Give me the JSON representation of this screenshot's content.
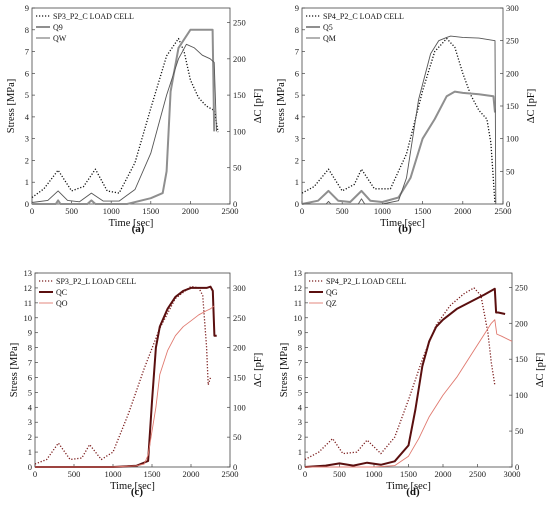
{
  "chart_data": [
    {
      "type": "line",
      "caption": "(a)",
      "xlabel": "Time [sec]",
      "ylabel": "Stress [MPa]",
      "y2label": "ΔC [pF]",
      "xlim": [
        0,
        2500
      ],
      "ylim": [
        0,
        9
      ],
      "y2lim": [
        0,
        270
      ],
      "xticks": [
        0,
        500,
        1000,
        1500,
        2000,
        2500
      ],
      "yticks": [
        0,
        1,
        2,
        3,
        4,
        5,
        6,
        7,
        8,
        9
      ],
      "y2ticks": [
        0,
        50,
        100,
        150,
        200,
        250
      ],
      "legend_position": "top-left",
      "series": [
        {
          "name": "SP3_P2_C LOAD CELL",
          "axis": "left",
          "style": "dotted",
          "color": "#111111",
          "x": [
            0,
            150,
            330,
            500,
            650,
            800,
            950,
            1100,
            1300,
            1500,
            1700,
            1850,
            1920,
            2000,
            2100,
            2200,
            2300,
            2350
          ],
          "y": [
            0.3,
            0.7,
            1.55,
            0.6,
            0.8,
            1.6,
            0.6,
            0.5,
            1.9,
            4.4,
            6.8,
            7.6,
            7.0,
            5.7,
            4.9,
            4.5,
            4.3,
            3.3
          ]
        },
        {
          "name": "Q9",
          "axis": "right",
          "style": "solid-thick",
          "color": "#8f8f8f",
          "x": [
            0,
            300,
            330,
            360,
            700,
            750,
            800,
            1000,
            1200,
            1500,
            1650,
            1700,
            1750,
            1850,
            2000,
            2100,
            2280,
            2300
          ],
          "y": [
            0,
            0,
            5,
            0,
            0,
            5,
            0,
            0,
            0,
            8,
            15,
            45,
            155,
            215,
            240,
            240,
            240,
            100
          ]
        },
        {
          "name": "QW",
          "axis": "right",
          "style": "solid-thin",
          "color": "#555555",
          "x": [
            0,
            200,
            330,
            450,
            600,
            750,
            900,
            1100,
            1300,
            1500,
            1700,
            1850,
            1950,
            2050,
            2150,
            2250,
            2300,
            2330
          ],
          "y": [
            2,
            5,
            18,
            5,
            3,
            15,
            4,
            4,
            20,
            70,
            150,
            200,
            220,
            215,
            205,
            200,
            195,
            100
          ]
        }
      ]
    },
    {
      "type": "line",
      "caption": "(b)",
      "xlabel": "Time [sec]",
      "ylabel": "Stress [MPa]",
      "y2label": "ΔC [pF]",
      "xlim": [
        0,
        2500
      ],
      "ylim": [
        0,
        9
      ],
      "y2lim": [
        0,
        300
      ],
      "xticks": [
        0,
        500,
        1000,
        1500,
        2000,
        2500
      ],
      "yticks": [
        0,
        1,
        2,
        3,
        4,
        5,
        6,
        7,
        8,
        9
      ],
      "y2ticks": [
        0,
        50,
        100,
        150,
        200,
        250,
        300
      ],
      "legend_position": "top-left",
      "series": [
        {
          "name": "SP4_P2_C LOAD CELL",
          "axis": "left",
          "style": "dotted",
          "color": "#111111",
          "x": [
            0,
            150,
            330,
            500,
            650,
            740,
            900,
            1100,
            1300,
            1500,
            1650,
            1800,
            1900,
            2000,
            2100,
            2200,
            2300,
            2350,
            2400
          ],
          "y": [
            0.5,
            0.8,
            1.6,
            0.6,
            0.9,
            1.6,
            0.7,
            0.7,
            2.3,
            5.2,
            7.0,
            7.6,
            7.2,
            6.0,
            5.0,
            4.3,
            3.9,
            2.8,
            0
          ]
        },
        {
          "name": "Q5",
          "axis": "right",
          "style": "solid-thick",
          "color": "#8f8f8f",
          "x": [
            0,
            200,
            330,
            450,
            600,
            740,
            850,
            1000,
            1200,
            1350,
            1500,
            1650,
            1800,
            1900,
            2000,
            2200,
            2380,
            2400
          ],
          "y": [
            0,
            5,
            20,
            5,
            3,
            20,
            5,
            3,
            10,
            40,
            100,
            130,
            165,
            172,
            170,
            168,
            165,
            140
          ]
        },
        {
          "name": "QM",
          "axis": "right",
          "style": "solid-thin",
          "color": "#555555",
          "x": [
            0,
            300,
            330,
            360,
            700,
            740,
            780,
            1000,
            1200,
            1300,
            1450,
            1600,
            1700,
            1800,
            1850,
            2000,
            2200,
            2400,
            2410
          ],
          "y": [
            0,
            0,
            4,
            0,
            0,
            8,
            0,
            0,
            5,
            40,
            160,
            230,
            250,
            255,
            257,
            255,
            254,
            250,
            0
          ]
        }
      ]
    },
    {
      "type": "line",
      "caption": "(c)",
      "xlabel": "Time [sec]",
      "ylabel": "Stress [MPa]",
      "y2label": "ΔC [pF]",
      "xlim": [
        0,
        2500
      ],
      "ylim": [
        0,
        13
      ],
      "y2lim": [
        0,
        325
      ],
      "xticks": [
        0,
        500,
        1000,
        1500,
        2000,
        2500
      ],
      "yticks": [
        0,
        1,
        2,
        3,
        4,
        5,
        6,
        7,
        8,
        9,
        10,
        11,
        12,
        13
      ],
      "y2ticks": [
        0,
        50,
        100,
        150,
        200,
        250,
        300
      ],
      "legend_position": "top-left",
      "series": [
        {
          "name": "SP3_P2_L LOAD CELL",
          "axis": "left",
          "style": "dotted",
          "color": "#7a1a1a",
          "x": [
            0,
            150,
            300,
            450,
            600,
            700,
            850,
            1000,
            1200,
            1400,
            1600,
            1800,
            2000,
            2100,
            2150,
            2200,
            2220,
            2250
          ],
          "y": [
            0.2,
            0.5,
            1.6,
            0.5,
            0.6,
            1.5,
            0.5,
            1.0,
            3.6,
            6.6,
            9.3,
            11.3,
            12.1,
            12.0,
            11.5,
            8.0,
            5.5,
            6.0
          ]
        },
        {
          "name": "QC",
          "axis": "right",
          "style": "solid-thick",
          "color": "#5a0f0f",
          "x": [
            0,
            300,
            700,
            1000,
            1300,
            1450,
            1500,
            1550,
            1600,
            1700,
            1800,
            1900,
            2000,
            2100,
            2200,
            2250,
            2280,
            2300,
            2330
          ],
          "y": [
            0,
            0,
            0,
            0,
            2,
            10,
            110,
            200,
            235,
            265,
            285,
            295,
            300,
            300,
            300,
            302,
            295,
            220,
            220
          ]
        },
        {
          "name": "QO",
          "axis": "right",
          "style": "solid-thin",
          "color": "#e07a70",
          "x": [
            0,
            300,
            700,
            1000,
            1300,
            1400,
            1450,
            1550,
            1600,
            1700,
            1800,
            1900,
            2000,
            2100,
            2200,
            2250,
            2300
          ],
          "y": [
            0,
            0,
            0,
            0,
            2,
            5,
            20,
            100,
            155,
            195,
            220,
            235,
            245,
            255,
            262,
            265,
            270
          ]
        }
      ]
    },
    {
      "type": "line",
      "caption": "(d)",
      "xlabel": "Time [sec]",
      "ylabel": "Stress [MPa]",
      "y2label": "ΔC [pF]",
      "xlim": [
        0,
        3000
      ],
      "ylim": [
        0,
        13
      ],
      "y2lim": [
        0,
        270
      ],
      "xticks": [
        0,
        500,
        1000,
        1500,
        2000,
        2500,
        3000
      ],
      "yticks": [
        0,
        1,
        2,
        3,
        4,
        5,
        6,
        7,
        8,
        9,
        10,
        11,
        12,
        13
      ],
      "y2ticks": [
        0,
        50,
        100,
        150,
        200,
        250
      ],
      "legend_position": "top-left",
      "series": [
        {
          "name": "SP4_P2_L LOAD CELL",
          "axis": "left",
          "style": "dotted",
          "color": "#7a1a1a",
          "x": [
            0,
            200,
            400,
            550,
            750,
            900,
            1100,
            1300,
            1500,
            1700,
            1900,
            2100,
            2300,
            2450,
            2550,
            2650,
            2700,
            2750
          ],
          "y": [
            0.5,
            1.0,
            1.9,
            0.9,
            1.0,
            1.8,
            0.9,
            2.0,
            4.5,
            7.2,
            9.5,
            10.8,
            11.6,
            12.0,
            11.5,
            9.0,
            7.0,
            5.5
          ]
        },
        {
          "name": "QG",
          "axis": "right",
          "style": "solid-thick",
          "color": "#5a0f0f",
          "x": [
            0,
            300,
            500,
            700,
            900,
            1100,
            1300,
            1500,
            1600,
            1700,
            1800,
            1900,
            2000,
            2200,
            2400,
            2600,
            2750,
            2770,
            2800,
            2900
          ],
          "y": [
            0,
            2,
            5,
            2,
            6,
            3,
            8,
            30,
            80,
            140,
            175,
            195,
            205,
            220,
            230,
            240,
            248,
            215,
            215,
            213
          ]
        },
        {
          "name": "QZ",
          "axis": "right",
          "style": "solid-thin",
          "color": "#e07a70",
          "x": [
            0,
            500,
            1000,
            1300,
            1500,
            1650,
            1800,
            2000,
            2200,
            2400,
            2600,
            2700,
            2750,
            2780,
            2850,
            3000
          ],
          "y": [
            0,
            0,
            0,
            2,
            15,
            40,
            70,
            100,
            125,
            155,
            185,
            200,
            205,
            185,
            182,
            175
          ]
        }
      ]
    }
  ]
}
